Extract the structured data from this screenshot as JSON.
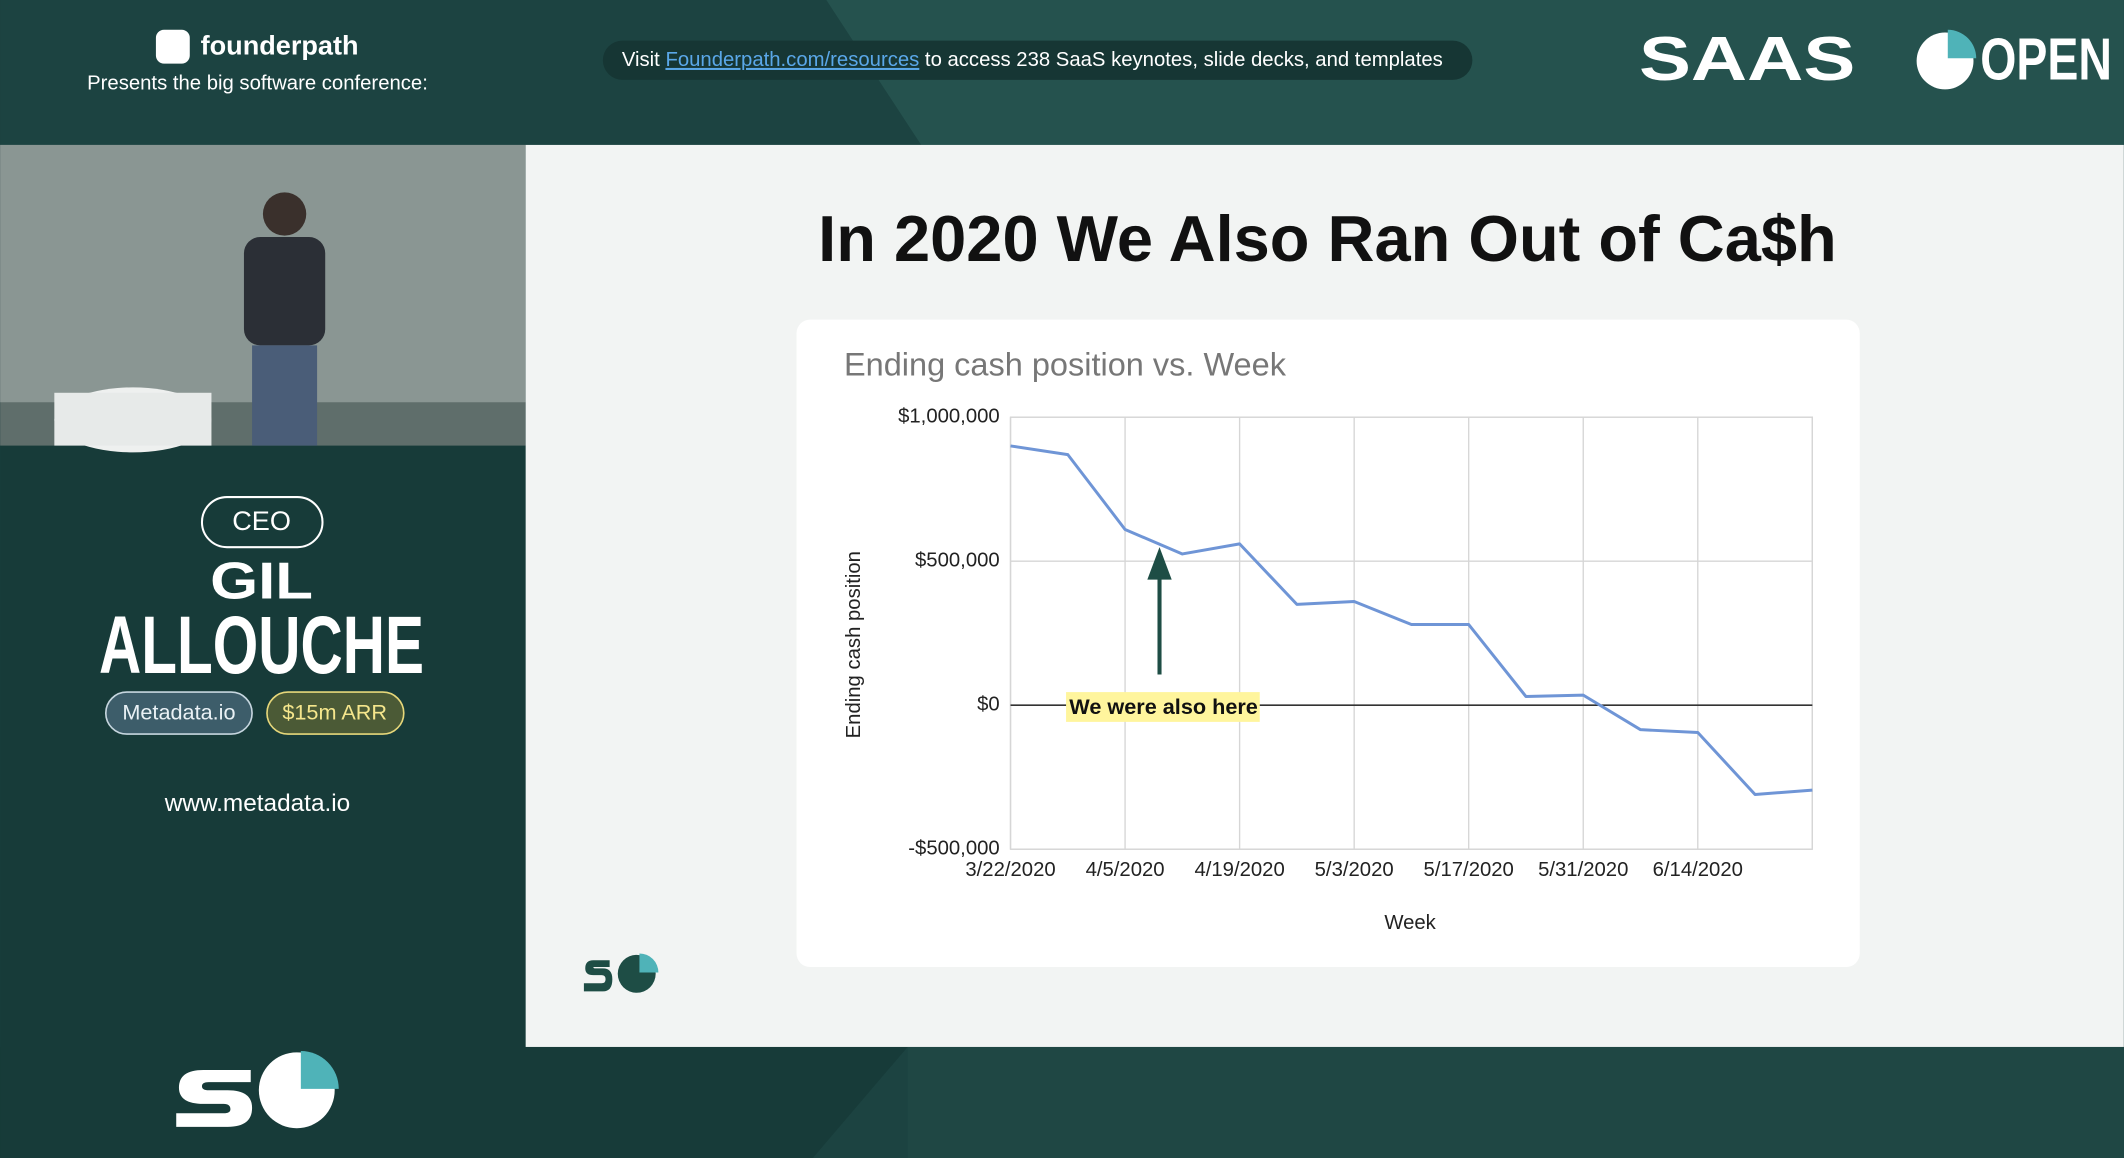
{
  "header": {
    "brand": "founderpath",
    "tagline": "Presents the big software conference:",
    "notice": {
      "prefix": "Visit",
      "link": "Founderpath.com/resources",
      "suffix": "to access 238 SaaS keynotes, slide decks, and templates"
    },
    "logo": {
      "left": "SAAS",
      "right": "OPEN"
    }
  },
  "speaker": {
    "role": "CEO",
    "first_name": "GIL",
    "last_name": "ALLOUCHE",
    "company": "Metadata.io",
    "arr": "$15m ARR",
    "website": "www.metadata.io"
  },
  "slide": {
    "title": "In 2020 We Also Ran Out of Ca$h"
  },
  "chart_data": {
    "type": "line",
    "title": "Ending cash position vs. Week",
    "x_label": "Week",
    "y_label": "Ending cash position",
    "categories": [
      "3/22/2020",
      null,
      "4/5/2020",
      null,
      "4/19/2020",
      null,
      "5/3/2020",
      null,
      "5/17/2020",
      null,
      "5/31/2020",
      null,
      "6/14/2020",
      null,
      null
    ],
    "values": [
      900000,
      870000,
      610000,
      525000,
      560000,
      350000,
      360000,
      280000,
      280000,
      30000,
      35000,
      -85000,
      -95000,
      -310000,
      -295000
    ],
    "color": "#6f95d6",
    "ylim": [
      -500000,
      1000000
    ],
    "yticks": [
      {
        "value": -500000,
        "label": "-$500,000"
      },
      {
        "value": 0,
        "label": "$0"
      },
      {
        "value": 500000,
        "label": "$500,000"
      },
      {
        "value": 1000000,
        "label": "$1,000,000"
      }
    ],
    "grid": true,
    "annotation": "We were also here"
  }
}
